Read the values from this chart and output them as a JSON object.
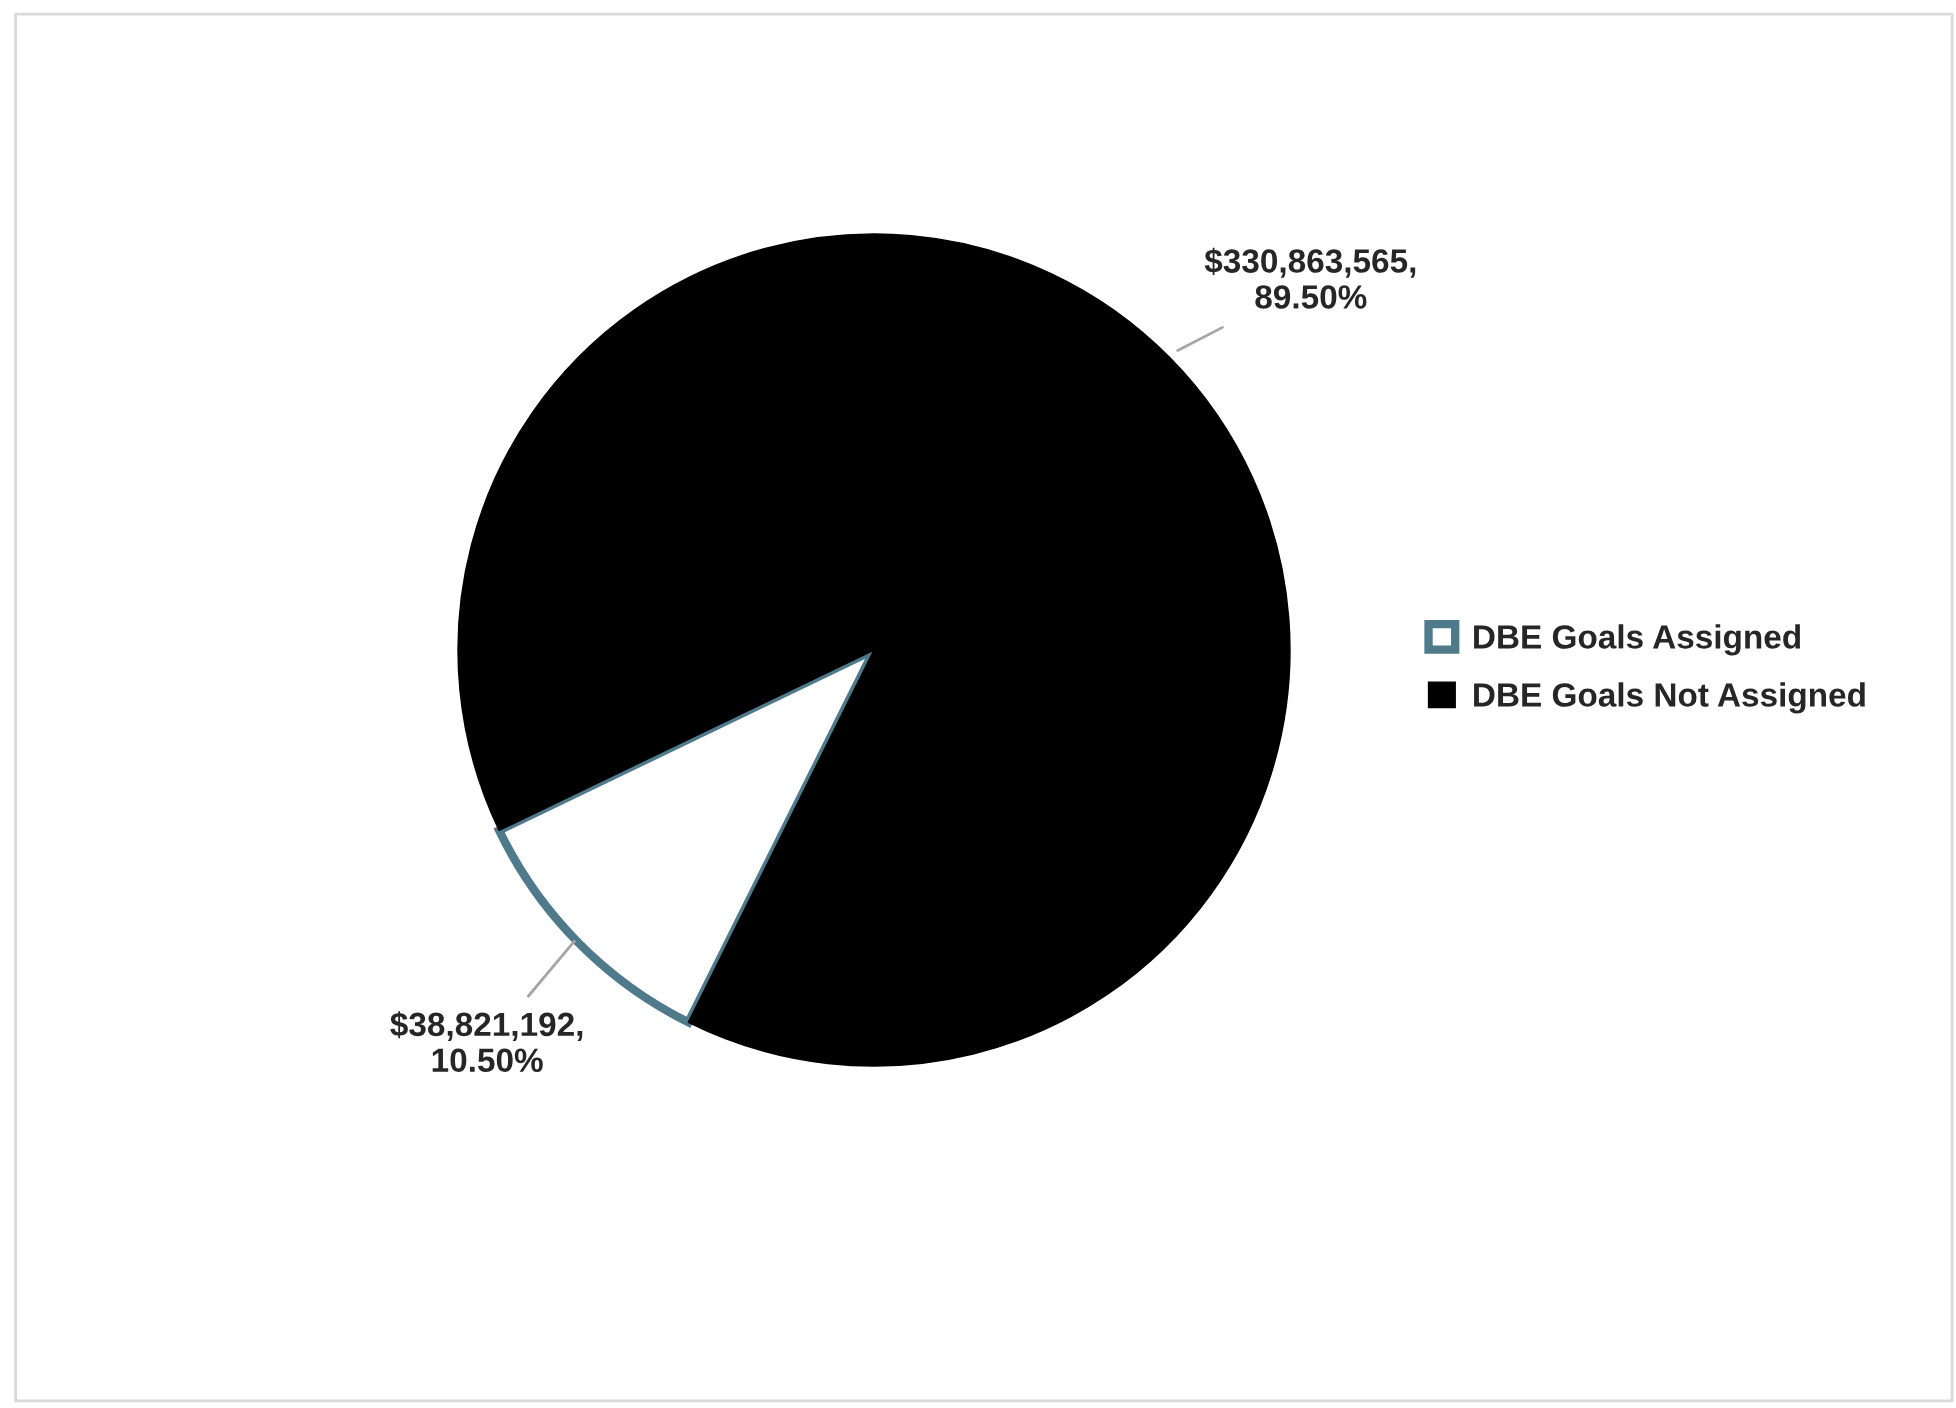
{
  "chart_data": {
    "type": "pie",
    "categories": [
      "DBE Goals Assigned",
      "DBE Goals Not Assigned"
    ],
    "values": [
      38821192,
      330863565
    ],
    "colors": [
      "#ffffff",
      "#000000"
    ],
    "value_labels": [
      "$38,821,192,\n10.50%",
      "$330,863,565,\n89.50%"
    ],
    "legend": "right"
  }
}
